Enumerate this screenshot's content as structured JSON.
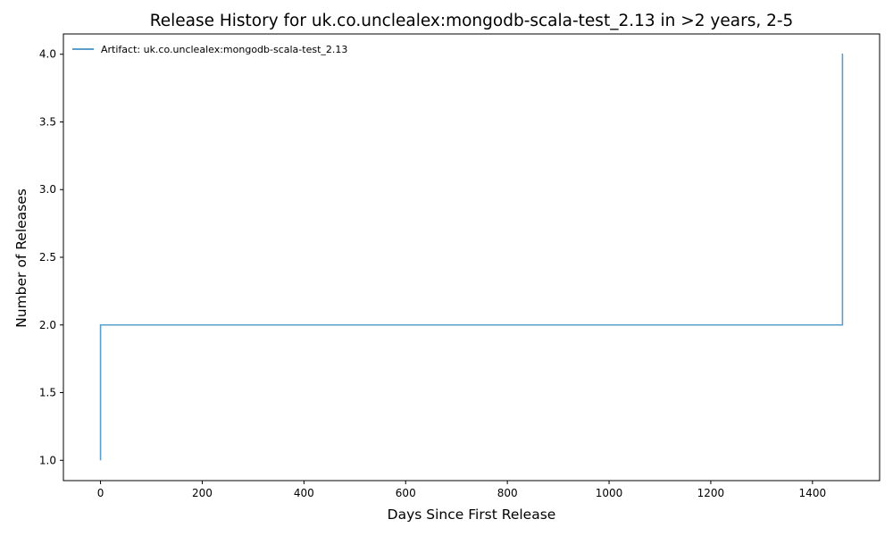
{
  "chart_data": {
    "type": "line",
    "title": "Release History for uk.co.unclealex:mongodb-scala-test_2.13 in >2 years, 2-5",
    "xlabel": "Days Since First Release",
    "ylabel": "Number of Releases",
    "xlim": [
      -73,
      1532
    ],
    "ylim": [
      0.85,
      4.15
    ],
    "xticks": [
      0,
      200,
      400,
      600,
      800,
      1000,
      1200,
      1400
    ],
    "yticks": [
      1.0,
      1.5,
      2.0,
      2.5,
      3.0,
      3.5,
      4.0
    ],
    "ytick_labels": [
      "1.0",
      "1.5",
      "2.0",
      "2.5",
      "3.0",
      "3.5",
      "4.0"
    ],
    "grid": false,
    "legend_position": "top-left",
    "step": "post",
    "series": [
      {
        "name": "Artifact: uk.co.unclealex:mongodb-scala-test_2.13",
        "color": "#5b9ec9",
        "x": [
          0,
          0,
          1459,
          1459,
          1460
        ],
        "y": [
          1,
          2,
          2,
          4,
          4
        ]
      }
    ]
  }
}
